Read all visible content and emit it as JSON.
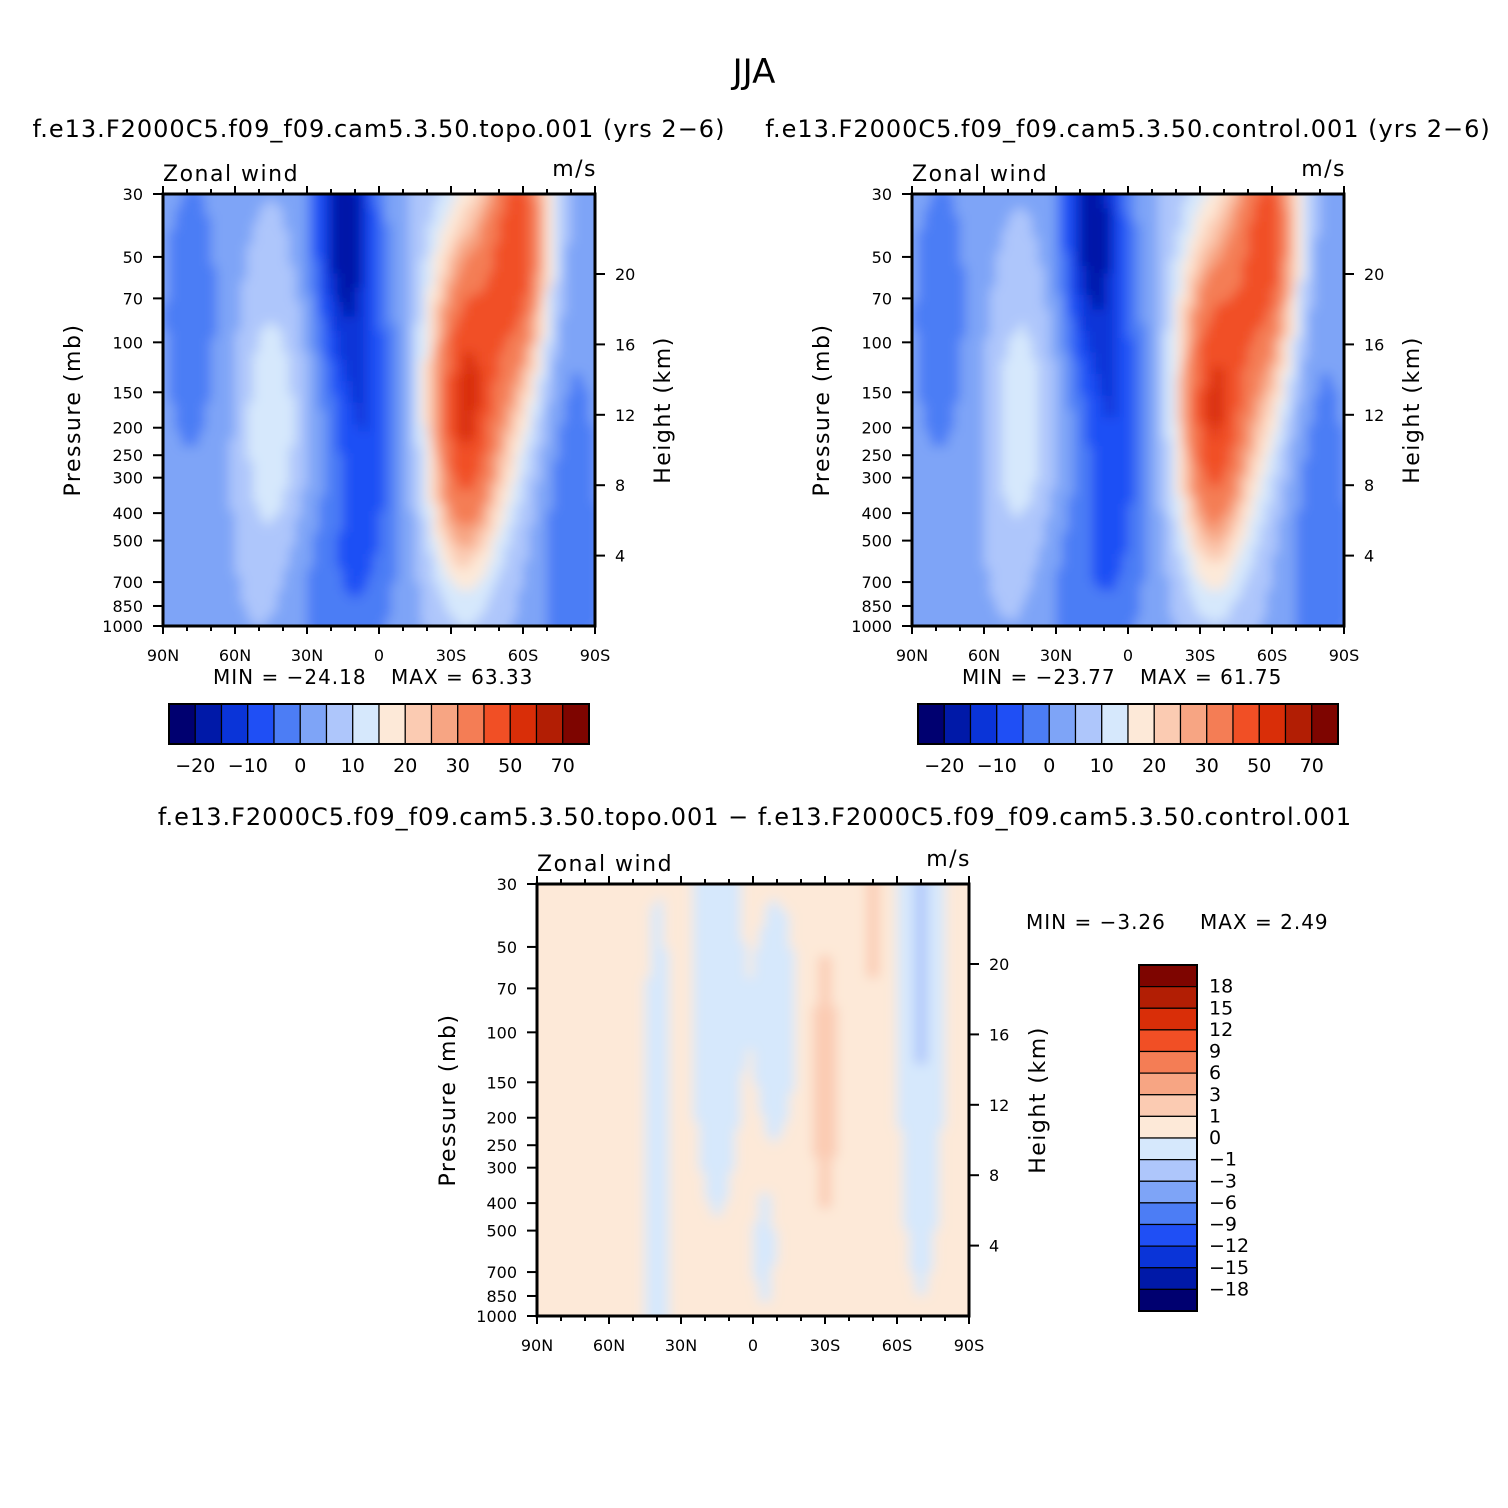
{
  "figure": {
    "title": "JJA"
  },
  "colors": {
    "div16": [
      "#000070",
      "#0019a8",
      "#0a34d8",
      "#1f4ff5",
      "#4c7df5",
      "#7ea4f7",
      "#aec6fb",
      "#d6e8fc",
      "#fde9d8",
      "#fbcbb2",
      "#f7a583",
      "#f47d55",
      "#f14f25",
      "#d92e08",
      "#b21e04",
      "#7e0500"
    ],
    "div16_labels": [
      "−20",
      "−10",
      "0",
      "10",
      "20",
      "30",
      "50",
      "70"
    ],
    "div17": [
      "#000070",
      "#0019a8",
      "#0a34d8",
      "#1f4ff5",
      "#4c7df5",
      "#7ea4f7",
      "#aec6fb",
      "#d6e8fc",
      "#fde9d8",
      "#fbcbb2",
      "#f7a583",
      "#f47d55",
      "#f14f25",
      "#d92e08",
      "#b21e04",
      "#7e0500"
    ],
    "div17_labels": [
      "18",
      "15",
      "12",
      "9",
      "6",
      "3",
      "1",
      "0",
      "−1",
      "−3",
      "−6",
      "−9",
      "−12",
      "−15",
      "−18"
    ]
  },
  "chart_data": [
    {
      "type": "heatmap",
      "panel": "top-left",
      "title": "f.e13.F2000C5.f09_f09.cam5.3.50.topo.001  (yrs 2−6)",
      "label_left": "Zonal wind",
      "label_right": "m/s",
      "ylabel": "Pressure (mb)",
      "y2label": "Height (km)",
      "xticks": [
        "90N",
        "60N",
        "30N",
        "0",
        "30S",
        "60S",
        "90S"
      ],
      "yticks": [
        "30",
        "50",
        "70",
        "100",
        "150",
        "200",
        "250",
        "300",
        "400",
        "500",
        "700",
        "850",
        "1000"
      ],
      "y2ticks": [
        "20",
        "16",
        "12",
        "8",
        "4"
      ],
      "min_text": "MIN =  −24.18",
      "max_text": "MAX =   63.33",
      "min": -24.18,
      "max": 63.33,
      "xlim": [
        90,
        -90
      ],
      "ylim": [
        1000,
        30
      ],
      "field": "topo"
    },
    {
      "type": "heatmap",
      "panel": "top-right",
      "title": "f.e13.F2000C5.f09_f09.cam5.3.50.control.001  (yrs 2−6)",
      "label_left": "Zonal wind",
      "label_right": "m/s",
      "ylabel": "Pressure (mb)",
      "y2label": "Height (km)",
      "xticks": [
        "90N",
        "60N",
        "30N",
        "0",
        "30S",
        "60S",
        "90S"
      ],
      "yticks": [
        "30",
        "50",
        "70",
        "100",
        "150",
        "200",
        "250",
        "300",
        "400",
        "500",
        "700",
        "850",
        "1000"
      ],
      "y2ticks": [
        "20",
        "16",
        "12",
        "8",
        "4"
      ],
      "min_text": "MIN =  −23.77",
      "max_text": "MAX =   61.75",
      "min": -23.77,
      "max": 61.75,
      "xlim": [
        90,
        -90
      ],
      "ylim": [
        1000,
        30
      ],
      "field": "control"
    },
    {
      "type": "heatmap",
      "panel": "bottom",
      "title": "f.e13.F2000C5.f09_f09.cam5.3.50.topo.001  −  f.e13.F2000C5.f09_f09.cam5.3.50.control.001",
      "label_left": "Zonal wind",
      "label_right": "m/s",
      "ylabel": "Pressure (mb)",
      "y2label": "Height (km)",
      "xticks": [
        "90N",
        "60N",
        "30N",
        "0",
        "30S",
        "60S",
        "90S"
      ],
      "yticks": [
        "30",
        "50",
        "70",
        "100",
        "150",
        "200",
        "250",
        "300",
        "400",
        "500",
        "700",
        "850",
        "1000"
      ],
      "y2ticks": [
        "20",
        "16",
        "12",
        "8",
        "4"
      ],
      "min_text": "MIN =    −3.26",
      "max_text": "MAX =     2.49",
      "min": -3.26,
      "max": 2.49,
      "xlim": [
        90,
        -90
      ],
      "ylim": [
        1000,
        30
      ],
      "field": "diff"
    }
  ]
}
